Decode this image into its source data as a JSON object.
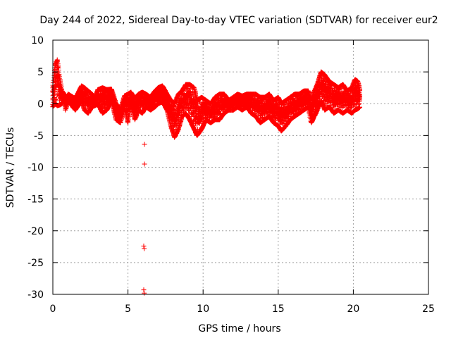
{
  "chart_data": {
    "type": "scatter",
    "title": "Day 244 of 2022, Sidereal Day-to-day VTEC variation (SDTVAR) for receiver eur2",
    "xlabel": "GPS time / hours",
    "ylabel": "SDTVAR / TECUs",
    "xlim": [
      0,
      25
    ],
    "ylim": [
      -30,
      10
    ],
    "xticks": [
      0,
      5,
      10,
      15,
      20,
      25
    ],
    "yticks": [
      -30,
      -25,
      -20,
      -15,
      -10,
      -5,
      0,
      5,
      10
    ],
    "grid": true,
    "marker": "+",
    "series": [
      {
        "name": "SDTVAR",
        "color": "#ff0000",
        "envelope": [
          [
            0.0,
            -0.5,
            2.5
          ],
          [
            0.15,
            0.0,
            6.0
          ],
          [
            0.3,
            -0.3,
            6.9
          ],
          [
            0.45,
            -0.2,
            4.0
          ],
          [
            0.6,
            0.0,
            2.0
          ],
          [
            0.75,
            0.5,
            1.5
          ],
          [
            0.85,
            -1.0,
            0.5
          ],
          [
            1.0,
            0.5,
            1.5
          ],
          [
            1.5,
            -1.0,
            0.8
          ],
          [
            1.9,
            0.5,
            2.8
          ],
          [
            2.1,
            -1.0,
            2.5
          ],
          [
            2.35,
            -1.5,
            2.0
          ],
          [
            2.6,
            -0.5,
            1.5
          ],
          [
            2.8,
            -0.3,
            1.0
          ],
          [
            3.0,
            0.0,
            2.2
          ],
          [
            3.3,
            -1.5,
            2.5
          ],
          [
            3.6,
            -1.0,
            2.2
          ],
          [
            3.9,
            0.5,
            2.3
          ],
          [
            4.2,
            -2.5,
            0.0
          ],
          [
            4.5,
            -3.0,
            -1.0
          ],
          [
            4.75,
            -0.5,
            1.2
          ],
          [
            5.0,
            -3.0,
            1.5
          ],
          [
            5.2,
            0.0,
            1.8
          ],
          [
            5.45,
            -2.5,
            0.8
          ],
          [
            5.7,
            -1.0,
            1.5
          ],
          [
            5.95,
            -1.5,
            1.8
          ],
          [
            6.2,
            -0.5,
            1.5
          ],
          [
            6.5,
            -1.0,
            1.0
          ],
          [
            6.8,
            -0.5,
            2.0
          ],
          [
            7.0,
            0.0,
            2.5
          ],
          [
            7.3,
            0.3,
            2.8
          ],
          [
            7.6,
            -1.0,
            1.5
          ],
          [
            7.85,
            -3.5,
            0.5
          ],
          [
            8.1,
            -5.3,
            0.0
          ],
          [
            8.35,
            -4.0,
            1.5
          ],
          [
            8.6,
            -2.0,
            2.0
          ],
          [
            8.85,
            -1.5,
            3.0
          ],
          [
            9.1,
            -2.5,
            3.0
          ],
          [
            9.4,
            -4.0,
            2.5
          ],
          [
            9.6,
            -5.0,
            0.5
          ],
          [
            9.9,
            -4.0,
            1.0
          ],
          [
            10.2,
            -2.5,
            0.5
          ],
          [
            10.5,
            -3.0,
            0.0
          ],
          [
            10.8,
            -2.5,
            1.0
          ],
          [
            11.1,
            -2.5,
            1.5
          ],
          [
            11.4,
            -1.5,
            1.5
          ],
          [
            11.7,
            -1.0,
            0.5
          ],
          [
            12.0,
            -1.0,
            1.0
          ],
          [
            12.3,
            -0.5,
            1.5
          ],
          [
            12.6,
            -1.0,
            1.2
          ],
          [
            12.9,
            -0.5,
            1.5
          ],
          [
            13.2,
            -1.5,
            1.5
          ],
          [
            13.5,
            -2.0,
            1.5
          ],
          [
            13.8,
            -3.0,
            1.0
          ],
          [
            14.1,
            -2.5,
            1.0
          ],
          [
            14.4,
            -2.0,
            1.5
          ],
          [
            14.7,
            -3.0,
            0.5
          ],
          [
            15.0,
            -3.5,
            1.0
          ],
          [
            15.2,
            -4.3,
            0.0
          ],
          [
            15.5,
            -3.5,
            0.5
          ],
          [
            15.8,
            -2.5,
            1.0
          ],
          [
            16.1,
            -2.0,
            1.5
          ],
          [
            16.4,
            -1.5,
            1.5
          ],
          [
            16.7,
            -1.0,
            2.0
          ],
          [
            17.0,
            -0.5,
            2.0
          ],
          [
            17.2,
            -3.0,
            0.5
          ],
          [
            17.4,
            -2.0,
            2.0
          ],
          [
            17.6,
            -1.0,
            3.0
          ],
          [
            17.85,
            0.5,
            5.0
          ],
          [
            18.1,
            -1.0,
            4.5
          ],
          [
            18.4,
            -0.5,
            3.5
          ],
          [
            18.7,
            -1.5,
            3.0
          ],
          [
            19.0,
            -1.0,
            2.5
          ],
          [
            19.3,
            -1.5,
            3.0
          ],
          [
            19.6,
            -1.0,
            2.0
          ],
          [
            19.9,
            -1.5,
            2.5
          ],
          [
            20.1,
            -1.0,
            3.8
          ],
          [
            20.3,
            -0.8,
            3.5
          ],
          [
            20.45,
            -0.5,
            2.0
          ]
        ],
        "outliers": [
          {
            "x": 6.1,
            "y": -6.4
          },
          {
            "x": 6.1,
            "y": -9.5
          },
          {
            "x": 6.05,
            "y": -22.4
          },
          {
            "x": 6.08,
            "y": -22.8
          },
          {
            "x": 6.05,
            "y": -29.3
          },
          {
            "x": 6.08,
            "y": -29.8
          }
        ]
      }
    ]
  }
}
